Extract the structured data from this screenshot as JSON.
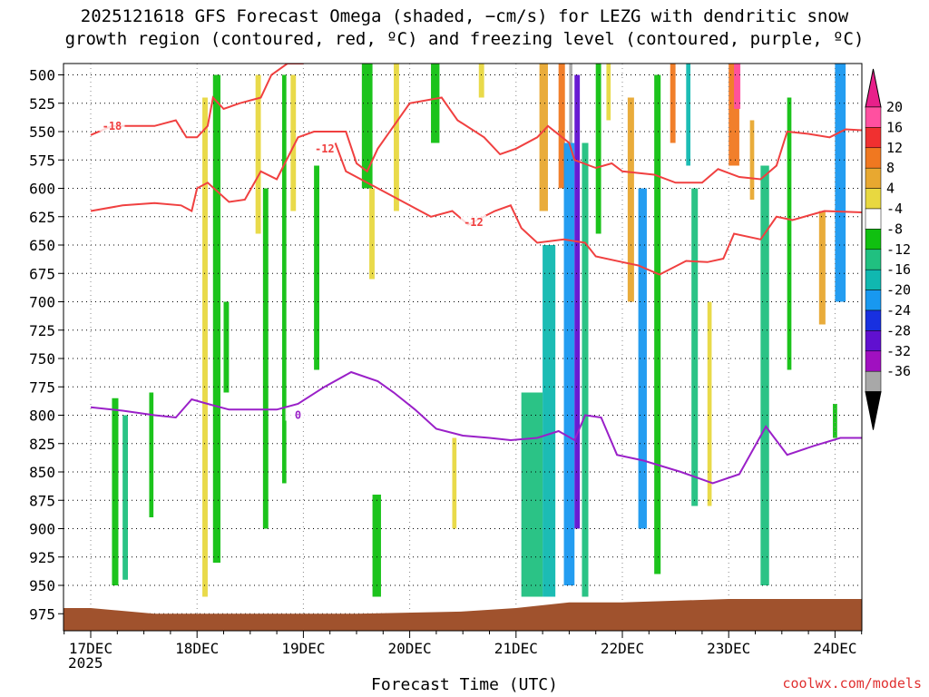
{
  "title_line1": "2025121618 GFS Forecast Omega (shaded, −cm/s) for LEZG with dendritic snow",
  "title_line2": "growth region (contoured, red, ºC) and freezing level (contoured, purple, ºC)",
  "xlabel": "Forecast Time (UTC)",
  "watermark": "coolwx.com/models",
  "year_label": "2025",
  "colors": {
    "dgz_contour": "#f04040",
    "freezing_contour": "#9a20c8",
    "terrain": "#a0522d",
    "gridline": "#000000"
  },
  "chart_data": {
    "type": "heatmap",
    "title": "2025121618 GFS Forecast Omega (shaded, −cm/s) for LEZG with dendritic snow growth region (contoured, red, ºC) and freezing level (contoured, purple, ºC)",
    "xlabel": "Forecast Time (UTC)",
    "ylabel": "",
    "y_axis": {
      "unit": "hPa",
      "ticks": [
        500,
        525,
        550,
        575,
        600,
        625,
        650,
        675,
        700,
        725,
        750,
        775,
        800,
        825,
        850,
        875,
        900,
        925,
        950,
        975
      ],
      "range": [
        490,
        990
      ],
      "reversed": true
    },
    "x_axis": {
      "ticks": [
        "17DEC",
        "18DEC",
        "19DEC",
        "20DEC",
        "21DEC",
        "22DEC",
        "23DEC",
        "24DEC"
      ],
      "start": "2025-12-16 18Z",
      "end": "2025-12-24 06Z"
    },
    "colorbar": {
      "unit": "-cm/s",
      "labels": [
        20,
        16,
        12,
        8,
        4,
        -4,
        -8,
        -12,
        -16,
        -20,
        -24,
        -28,
        -32,
        -36
      ],
      "bins": [
        {
          "from": 20,
          "to": 24,
          "color": "#ff50a0"
        },
        {
          "from": 16,
          "to": 20,
          "color": "#f03030"
        },
        {
          "from": 12,
          "to": 16,
          "color": "#f07820"
        },
        {
          "from": 8,
          "to": 12,
          "color": "#e8a830"
        },
        {
          "from": 4,
          "to": 8,
          "color": "#e8d840"
        },
        {
          "from": -4,
          "to": 4,
          "color": "#ffffff"
        },
        {
          "from": -8,
          "to": -4,
          "color": "#10c010"
        },
        {
          "from": -12,
          "to": -8,
          "color": "#20c080"
        },
        {
          "from": -16,
          "to": -12,
          "color": "#10b8b0"
        },
        {
          "from": -20,
          "to": -16,
          "color": "#1898f0"
        },
        {
          "from": -24,
          "to": -20,
          "color": "#1830e0"
        },
        {
          "from": -28,
          "to": -24,
          "color": "#6010d0"
        },
        {
          "from": -32,
          "to": -28,
          "color": "#a010c0"
        },
        {
          "from": -36,
          "to": -32,
          "color": "#a8a8a8"
        }
      ],
      "extend_top_color": "#e8208a",
      "extend_bottom_color": "#000000"
    },
    "shaded_regions": [
      {
        "day": 0.2,
        "width": 0.06,
        "p_top": 785,
        "p_bot": 950,
        "value": -6
      },
      {
        "day": 0.3,
        "width": 0.05,
        "p_top": 800,
        "p_bot": 945,
        "value": -10
      },
      {
        "day": 0.55,
        "width": 0.04,
        "p_top": 780,
        "p_bot": 890,
        "value": -6
      },
      {
        "day": 1.05,
        "width": 0.05,
        "p_top": 520,
        "p_bot": 960,
        "value": 5
      },
      {
        "day": 1.15,
        "width": 0.07,
        "p_top": 500,
        "p_bot": 930,
        "value": -6
      },
      {
        "day": 1.25,
        "width": 0.05,
        "p_top": 700,
        "p_bot": 780,
        "value": -6
      },
      {
        "day": 1.55,
        "width": 0.05,
        "p_top": 500,
        "p_bot": 640,
        "value": 5
      },
      {
        "day": 1.62,
        "width": 0.05,
        "p_top": 600,
        "p_bot": 900,
        "value": -6
      },
      {
        "day": 1.8,
        "width": 0.04,
        "p_top": 500,
        "p_bot": 860,
        "value": -6
      },
      {
        "day": 1.88,
        "width": 0.05,
        "p_top": 500,
        "p_bot": 620,
        "value": 5
      },
      {
        "day": 2.1,
        "width": 0.05,
        "p_top": 580,
        "p_bot": 760,
        "value": -6
      },
      {
        "day": 2.55,
        "width": 0.1,
        "p_top": 490,
        "p_bot": 600,
        "value": -6
      },
      {
        "day": 2.65,
        "width": 0.08,
        "p_top": 870,
        "p_bot": 960,
        "value": -8
      },
      {
        "day": 2.62,
        "width": 0.05,
        "p_top": 600,
        "p_bot": 680,
        "value": 5
      },
      {
        "day": 2.85,
        "width": 0.05,
        "p_top": 490,
        "p_bot": 620,
        "value": 5
      },
      {
        "day": 3.2,
        "width": 0.08,
        "p_top": 490,
        "p_bot": 560,
        "value": -6
      },
      {
        "day": 3.4,
        "width": 0.04,
        "p_top": 820,
        "p_bot": 900,
        "value": 5
      },
      {
        "day": 3.65,
        "width": 0.05,
        "p_top": 490,
        "p_bot": 520,
        "value": 5
      },
      {
        "day": 4.05,
        "width": 0.2,
        "p_top": 780,
        "p_bot": 960,
        "value": -10
      },
      {
        "day": 4.22,
        "width": 0.08,
        "p_top": 490,
        "p_bot": 620,
        "value": 10
      },
      {
        "day": 4.25,
        "width": 0.12,
        "p_top": 650,
        "p_bot": 960,
        "value": -14
      },
      {
        "day": 4.4,
        "width": 0.06,
        "p_top": 490,
        "p_bot": 600,
        "value": 14
      },
      {
        "day": 4.45,
        "width": 0.1,
        "p_top": 560,
        "p_bot": 950,
        "value": -18
      },
      {
        "day": 4.5,
        "width": 0.03,
        "p_top": 490,
        "p_bot": 560,
        "value": -36
      },
      {
        "day": 4.55,
        "width": 0.05,
        "p_top": 500,
        "p_bot": 900,
        "value": -26
      },
      {
        "day": 4.62,
        "width": 0.06,
        "p_top": 560,
        "p_bot": 960,
        "value": -12
      },
      {
        "day": 4.75,
        "width": 0.05,
        "p_top": 490,
        "p_bot": 640,
        "value": -6
      },
      {
        "day": 4.85,
        "width": 0.04,
        "p_top": 490,
        "p_bot": 540,
        "value": 5
      },
      {
        "day": 5.05,
        "width": 0.06,
        "p_top": 520,
        "p_bot": 700,
        "value": 10
      },
      {
        "day": 5.15,
        "width": 0.08,
        "p_top": 600,
        "p_bot": 900,
        "value": -18
      },
      {
        "day": 5.3,
        "width": 0.06,
        "p_top": 500,
        "p_bot": 940,
        "value": -6
      },
      {
        "day": 5.45,
        "width": 0.05,
        "p_top": 490,
        "p_bot": 560,
        "value": 14
      },
      {
        "day": 5.6,
        "width": 0.04,
        "p_top": 490,
        "p_bot": 580,
        "value": -14
      },
      {
        "day": 5.65,
        "width": 0.06,
        "p_top": 600,
        "p_bot": 880,
        "value": -10
      },
      {
        "day": 5.8,
        "width": 0.04,
        "p_top": 700,
        "p_bot": 880,
        "value": 5
      },
      {
        "day": 6.0,
        "width": 0.1,
        "p_top": 490,
        "p_bot": 580,
        "value": 14
      },
      {
        "day": 6.05,
        "width": 0.06,
        "p_top": 490,
        "p_bot": 530,
        "value": 22
      },
      {
        "day": 6.2,
        "width": 0.04,
        "p_top": 540,
        "p_bot": 610,
        "value": 8
      },
      {
        "day": 6.3,
        "width": 0.08,
        "p_top": 580,
        "p_bot": 950,
        "value": -12
      },
      {
        "day": 6.55,
        "width": 0.04,
        "p_top": 520,
        "p_bot": 760,
        "value": -6
      },
      {
        "day": 6.85,
        "width": 0.06,
        "p_top": 620,
        "p_bot": 720,
        "value": 10
      },
      {
        "day": 7.0,
        "width": 0.1,
        "p_top": 490,
        "p_bot": 700,
        "value": -18
      },
      {
        "day": 6.98,
        "width": 0.04,
        "p_top": 790,
        "p_bot": 820,
        "value": -8
      }
    ],
    "dgz_contours": [
      {
        "label": "-18",
        "points": [
          [
            0,
            553
          ],
          [
            0.2,
            545
          ],
          [
            0.6,
            545
          ],
          [
            0.8,
            540
          ],
          [
            0.9,
            555
          ],
          [
            1.0,
            555
          ],
          [
            1.1,
            545
          ],
          [
            1.15,
            520
          ],
          [
            1.25,
            530
          ],
          [
            1.4,
            525
          ],
          [
            1.6,
            520
          ],
          [
            1.7,
            500
          ],
          [
            1.85,
            490
          ],
          [
            2.0,
            490
          ]
        ],
        "label_pos": [
          0.2,
          545
        ]
      },
      {
        "label": "-12",
        "points": [
          [
            0,
            620
          ],
          [
            0.3,
            615
          ],
          [
            0.6,
            613
          ],
          [
            0.85,
            615
          ],
          [
            0.95,
            620
          ],
          [
            1.0,
            600
          ],
          [
            1.1,
            595
          ],
          [
            1.3,
            612
          ],
          [
            1.45,
            610
          ],
          [
            1.6,
            585
          ],
          [
            1.75,
            592
          ],
          [
            1.95,
            555
          ],
          [
            2.1,
            550
          ],
          [
            2.3,
            550
          ],
          [
            2.4,
            550
          ],
          [
            2.5,
            578
          ],
          [
            2.6,
            585
          ],
          [
            2.7,
            565
          ],
          [
            3.0,
            525
          ],
          [
            3.3,
            520
          ],
          [
            3.45,
            540
          ],
          [
            3.7,
            555
          ],
          [
            3.85,
            570
          ],
          [
            4.0,
            565
          ],
          [
            4.2,
            555
          ],
          [
            4.3,
            545
          ],
          [
            4.5,
            560
          ],
          [
            4.55,
            575
          ],
          [
            4.75,
            582
          ],
          [
            4.9,
            578
          ],
          [
            5.0,
            585
          ],
          [
            5.3,
            588
          ],
          [
            5.5,
            595
          ],
          [
            5.75,
            595
          ],
          [
            5.9,
            583
          ],
          [
            6.1,
            590
          ],
          [
            6.3,
            592
          ],
          [
            6.45,
            580
          ],
          [
            6.55,
            550
          ],
          [
            6.75,
            552
          ],
          [
            6.95,
            555
          ],
          [
            7.1,
            548
          ],
          [
            7.5,
            550
          ]
        ],
        "label_pos": [
          2.2,
          565
        ]
      },
      {
        "label": "-12",
        "points": [
          [
            2.3,
            560
          ],
          [
            2.4,
            585
          ],
          [
            2.6,
            595
          ],
          [
            2.8,
            605
          ],
          [
            3.0,
            615
          ],
          [
            3.2,
            625
          ],
          [
            3.4,
            620
          ],
          [
            3.55,
            632
          ],
          [
            3.8,
            620
          ],
          [
            3.95,
            615
          ],
          [
            4.05,
            635
          ],
          [
            4.2,
            648
          ],
          [
            4.45,
            645
          ],
          [
            4.65,
            648
          ],
          [
            4.75,
            660
          ],
          [
            5.0,
            665
          ],
          [
            5.15,
            668
          ],
          [
            5.35,
            676
          ],
          [
            5.6,
            664
          ],
          [
            5.8,
            665
          ],
          [
            5.95,
            662
          ],
          [
            6.05,
            640
          ],
          [
            6.3,
            645
          ],
          [
            6.45,
            625
          ],
          [
            6.6,
            628
          ],
          [
            6.9,
            620
          ],
          [
            7.5,
            622
          ]
        ],
        "label_pos": [
          3.6,
          630
        ]
      }
    ],
    "freezing_contours": [
      {
        "label": "0",
        "points": [
          [
            0,
            793
          ],
          [
            0.3,
            796
          ],
          [
            0.6,
            800
          ],
          [
            0.8,
            802
          ],
          [
            0.95,
            786
          ],
          [
            1.1,
            790
          ],
          [
            1.3,
            795
          ],
          [
            1.5,
            795
          ],
          [
            1.75,
            795
          ],
          [
            1.95,
            790
          ],
          [
            2.2,
            775
          ],
          [
            2.45,
            762
          ],
          [
            2.7,
            770
          ],
          [
            2.85,
            780
          ],
          [
            3.05,
            795
          ],
          [
            3.25,
            812
          ],
          [
            3.5,
            818
          ],
          [
            3.75,
            820
          ],
          [
            3.95,
            822
          ],
          [
            4.2,
            820
          ],
          [
            4.4,
            814
          ],
          [
            4.55,
            822
          ],
          [
            4.65,
            800
          ],
          [
            4.8,
            802
          ],
          [
            4.95,
            835
          ],
          [
            5.2,
            840
          ],
          [
            5.55,
            850
          ],
          [
            5.85,
            860
          ],
          [
            6.1,
            852
          ],
          [
            6.35,
            810
          ],
          [
            6.55,
            835
          ],
          [
            6.8,
            827
          ],
          [
            7.05,
            820
          ],
          [
            7.3,
            820
          ],
          [
            7.45,
            838
          ],
          [
            7.5,
            836
          ]
        ],
        "label_pos": [
          1.95,
          800
        ]
      }
    ],
    "terrain": {
      "points": [
        [
          0,
          970
        ],
        [
          0.6,
          975
        ],
        [
          1.5,
          975
        ],
        [
          2.5,
          975
        ],
        [
          3.5,
          973
        ],
        [
          4.0,
          970
        ],
        [
          4.5,
          965
        ],
        [
          5.0,
          965
        ],
        [
          6.0,
          962
        ],
        [
          7.0,
          962
        ],
        [
          7.5,
          962
        ]
      ]
    }
  }
}
